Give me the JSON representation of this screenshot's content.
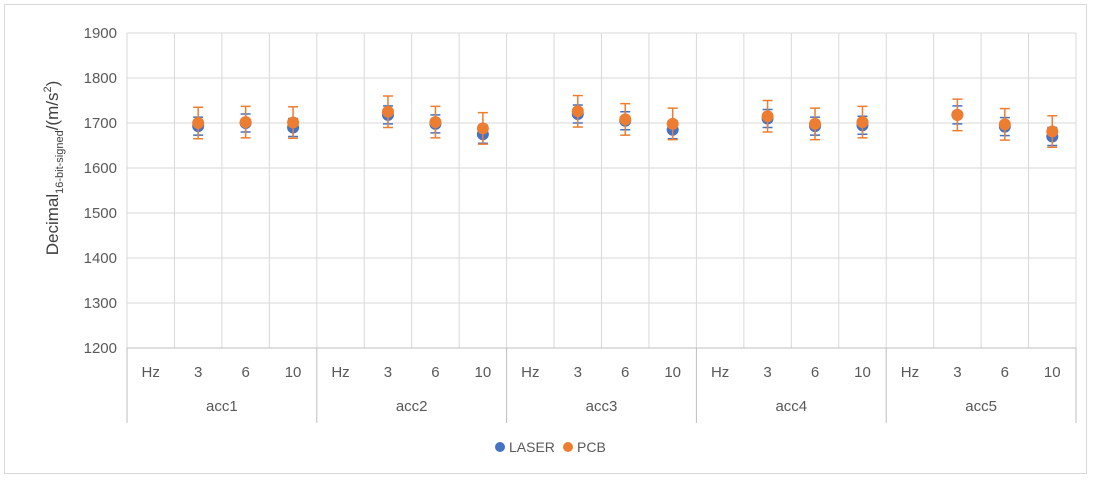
{
  "chart_data": {
    "type": "scatter",
    "title": "",
    "ylabel": {
      "main": "Decimal",
      "subscript": "16-bit-signed",
      "unit": "/(m/s",
      "unit_sup": "2",
      "unit_end": ")"
    },
    "ylim": [
      1200,
      1900
    ],
    "yticks": [
      1200,
      1300,
      1400,
      1500,
      1600,
      1700,
      1800,
      1900
    ],
    "grid": true,
    "legend_position": "bottom",
    "groups": [
      "acc1",
      "acc2",
      "acc3",
      "acc4",
      "acc5"
    ],
    "subcategories": [
      "Hz",
      "3",
      "6",
      "10"
    ],
    "series": [
      {
        "name": "LASER",
        "color": "#4472c4",
        "values": [
          [
            null,
            1693,
            1700,
            1690
          ],
          [
            null,
            1718,
            1698,
            1675
          ],
          [
            null,
            1720,
            1705,
            1685
          ],
          [
            null,
            1710,
            1693,
            1695
          ],
          [
            null,
            1718,
            1692,
            1670
          ]
        ],
        "errors": [
          [
            null,
            20,
            20,
            20
          ],
          [
            null,
            20,
            20,
            20
          ],
          [
            null,
            20,
            20,
            20
          ],
          [
            null,
            20,
            20,
            20
          ],
          [
            null,
            20,
            20,
            20
          ]
        ]
      },
      {
        "name": "PCB",
        "color": "#ed7d31",
        "values": [
          [
            null,
            1700,
            1702,
            1701
          ],
          [
            null,
            1725,
            1702,
            1688
          ],
          [
            null,
            1726,
            1708,
            1698
          ],
          [
            null,
            1715,
            1698,
            1702
          ],
          [
            null,
            1718,
            1697,
            1681
          ]
        ],
        "errors": [
          [
            null,
            35,
            35,
            35
          ],
          [
            null,
            35,
            35,
            35
          ],
          [
            null,
            35,
            35,
            35
          ],
          [
            null,
            35,
            35,
            35
          ],
          [
            null,
            35,
            35,
            35
          ]
        ]
      }
    ]
  }
}
